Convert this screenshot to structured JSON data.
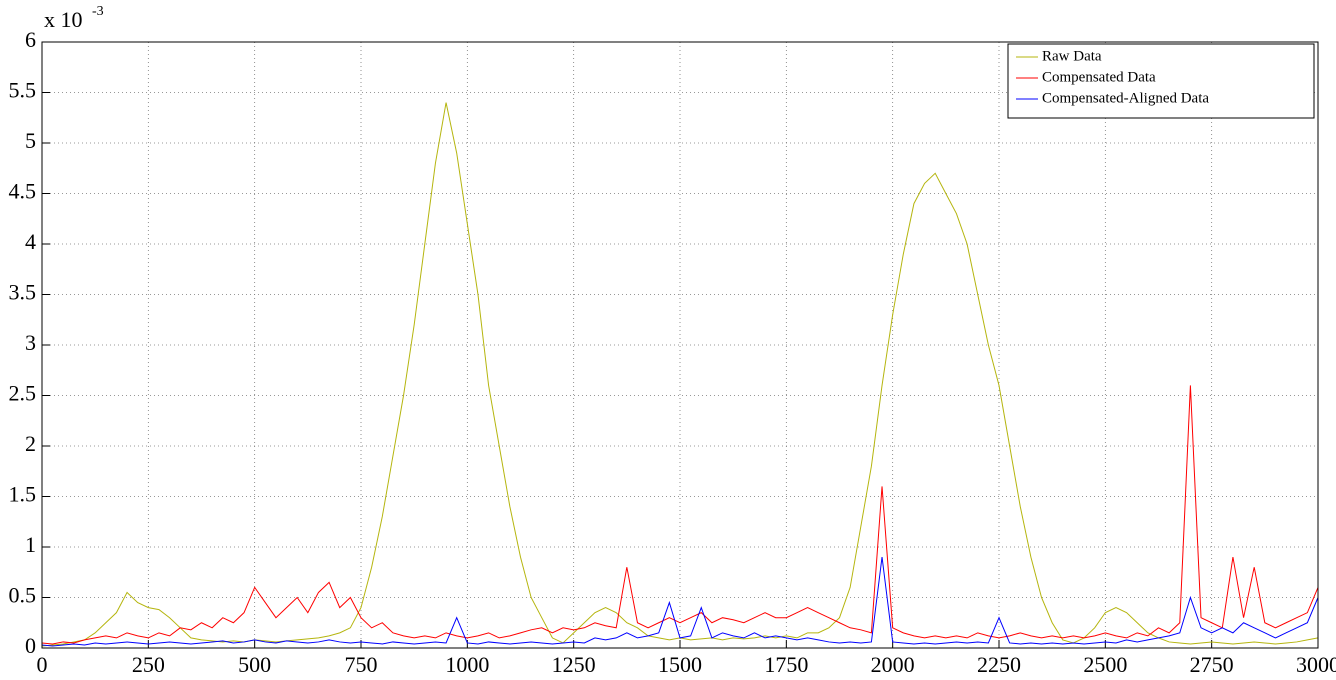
{
  "chart_data": {
    "type": "line",
    "annotation": {
      "text": "x 10",
      "exponent": "-3"
    },
    "x": [
      0,
      25,
      50,
      75,
      100,
      125,
      150,
      175,
      200,
      225,
      250,
      275,
      300,
      325,
      350,
      375,
      400,
      425,
      450,
      475,
      500,
      525,
      550,
      575,
      600,
      625,
      650,
      675,
      700,
      725,
      750,
      775,
      800,
      825,
      850,
      875,
      900,
      925,
      950,
      975,
      1000,
      1025,
      1050,
      1075,
      1100,
      1125,
      1150,
      1175,
      1200,
      1225,
      1250,
      1275,
      1300,
      1325,
      1350,
      1375,
      1400,
      1425,
      1450,
      1475,
      1500,
      1525,
      1550,
      1575,
      1600,
      1625,
      1650,
      1675,
      1700,
      1725,
      1750,
      1775,
      1800,
      1825,
      1850,
      1875,
      1900,
      1925,
      1950,
      1975,
      2000,
      2025,
      2050,
      2075,
      2100,
      2125,
      2150,
      2175,
      2200,
      2225,
      2250,
      2275,
      2300,
      2325,
      2350,
      2375,
      2400,
      2425,
      2450,
      2475,
      2500,
      2525,
      2550,
      2575,
      2600,
      2625,
      2650,
      2675,
      2700,
      2725,
      2750,
      2775,
      2800,
      2825,
      2850,
      2875,
      2900,
      2925,
      2950,
      2975,
      3000
    ],
    "series": [
      {
        "name": "Raw Data",
        "color": "#b5b50e",
        "values": [
          0.02,
          0.03,
          0.04,
          0.06,
          0.08,
          0.15,
          0.25,
          0.35,
          0.55,
          0.45,
          0.4,
          0.38,
          0.3,
          0.2,
          0.1,
          0.08,
          0.07,
          0.06,
          0.07,
          0.06,
          0.08,
          0.07,
          0.06,
          0.07,
          0.08,
          0.09,
          0.1,
          0.12,
          0.15,
          0.2,
          0.4,
          0.8,
          1.3,
          1.9,
          2.5,
          3.2,
          4.0,
          4.8,
          5.4,
          4.9,
          4.2,
          3.5,
          2.6,
          2.0,
          1.4,
          0.9,
          0.5,
          0.3,
          0.1,
          0.05,
          0.15,
          0.25,
          0.35,
          0.4,
          0.35,
          0.25,
          0.2,
          0.12,
          0.1,
          0.08,
          0.1,
          0.08,
          0.09,
          0.1,
          0.08,
          0.1,
          0.09,
          0.1,
          0.12,
          0.1,
          0.12,
          0.1,
          0.15,
          0.15,
          0.2,
          0.3,
          0.6,
          1.2,
          1.8,
          2.6,
          3.3,
          3.9,
          4.4,
          4.6,
          4.7,
          4.5,
          4.3,
          4.0,
          3.5,
          3.0,
          2.6,
          2.0,
          1.4,
          0.9,
          0.5,
          0.25,
          0.08,
          0.05,
          0.1,
          0.2,
          0.35,
          0.4,
          0.35,
          0.25,
          0.15,
          0.1,
          0.06,
          0.05,
          0.04,
          0.05,
          0.06,
          0.05,
          0.04,
          0.05,
          0.06,
          0.05,
          0.04,
          0.05,
          0.06,
          0.08,
          0.1
        ]
      },
      {
        "name": "Compensated Data",
        "color": "#ff0000",
        "values": [
          0.05,
          0.04,
          0.06,
          0.05,
          0.08,
          0.1,
          0.12,
          0.1,
          0.15,
          0.12,
          0.1,
          0.15,
          0.12,
          0.2,
          0.18,
          0.25,
          0.2,
          0.3,
          0.25,
          0.35,
          0.6,
          0.45,
          0.3,
          0.4,
          0.5,
          0.35,
          0.55,
          0.65,
          0.4,
          0.5,
          0.3,
          0.2,
          0.25,
          0.15,
          0.12,
          0.1,
          0.12,
          0.1,
          0.15,
          0.12,
          0.1,
          0.12,
          0.15,
          0.1,
          0.12,
          0.15,
          0.18,
          0.2,
          0.15,
          0.2,
          0.18,
          0.2,
          0.25,
          0.22,
          0.2,
          0.8,
          0.25,
          0.2,
          0.25,
          0.3,
          0.25,
          0.3,
          0.35,
          0.25,
          0.3,
          0.28,
          0.25,
          0.3,
          0.35,
          0.3,
          0.3,
          0.35,
          0.4,
          0.35,
          0.3,
          0.25,
          0.2,
          0.18,
          0.15,
          1.6,
          0.2,
          0.15,
          0.12,
          0.1,
          0.12,
          0.1,
          0.12,
          0.1,
          0.15,
          0.12,
          0.1,
          0.12,
          0.15,
          0.12,
          0.1,
          0.12,
          0.1,
          0.12,
          0.1,
          0.12,
          0.15,
          0.12,
          0.1,
          0.15,
          0.12,
          0.2,
          0.15,
          0.25,
          2.6,
          0.3,
          0.25,
          0.2,
          0.9,
          0.3,
          0.8,
          0.25,
          0.2,
          0.25,
          0.3,
          0.35,
          0.6
        ]
      },
      {
        "name": "Compensated-Aligned Data",
        "color": "#0000ff",
        "values": [
          0.03,
          0.02,
          0.03,
          0.04,
          0.03,
          0.05,
          0.04,
          0.05,
          0.06,
          0.05,
          0.04,
          0.05,
          0.06,
          0.05,
          0.04,
          0.05,
          0.06,
          0.07,
          0.05,
          0.06,
          0.08,
          0.06,
          0.05,
          0.07,
          0.06,
          0.05,
          0.06,
          0.08,
          0.06,
          0.05,
          0.06,
          0.05,
          0.04,
          0.06,
          0.05,
          0.04,
          0.05,
          0.06,
          0.05,
          0.3,
          0.05,
          0.04,
          0.06,
          0.05,
          0.04,
          0.05,
          0.06,
          0.05,
          0.04,
          0.05,
          0.06,
          0.05,
          0.1,
          0.08,
          0.1,
          0.15,
          0.1,
          0.12,
          0.15,
          0.45,
          0.1,
          0.12,
          0.4,
          0.1,
          0.15,
          0.12,
          0.1,
          0.15,
          0.1,
          0.12,
          0.1,
          0.08,
          0.1,
          0.08,
          0.06,
          0.05,
          0.06,
          0.05,
          0.06,
          0.9,
          0.06,
          0.05,
          0.04,
          0.05,
          0.04,
          0.05,
          0.06,
          0.05,
          0.06,
          0.05,
          0.3,
          0.05,
          0.04,
          0.05,
          0.04,
          0.05,
          0.04,
          0.05,
          0.04,
          0.05,
          0.06,
          0.05,
          0.08,
          0.06,
          0.08,
          0.1,
          0.12,
          0.15,
          0.5,
          0.2,
          0.15,
          0.2,
          0.15,
          0.25,
          0.2,
          0.15,
          0.1,
          0.15,
          0.2,
          0.25,
          0.5
        ]
      }
    ],
    "xlim": [
      0,
      3000
    ],
    "xticks": [
      0,
      250,
      500,
      750,
      1000,
      1250,
      1500,
      1750,
      2000,
      2250,
      2500,
      2750,
      3000
    ],
    "ylim": [
      0,
      6
    ],
    "yticks": [
      0,
      0.5,
      1,
      1.5,
      2,
      2.5,
      3,
      3.5,
      4,
      4.5,
      5,
      5.5,
      6
    ],
    "grid": true,
    "legend": "northeast"
  }
}
